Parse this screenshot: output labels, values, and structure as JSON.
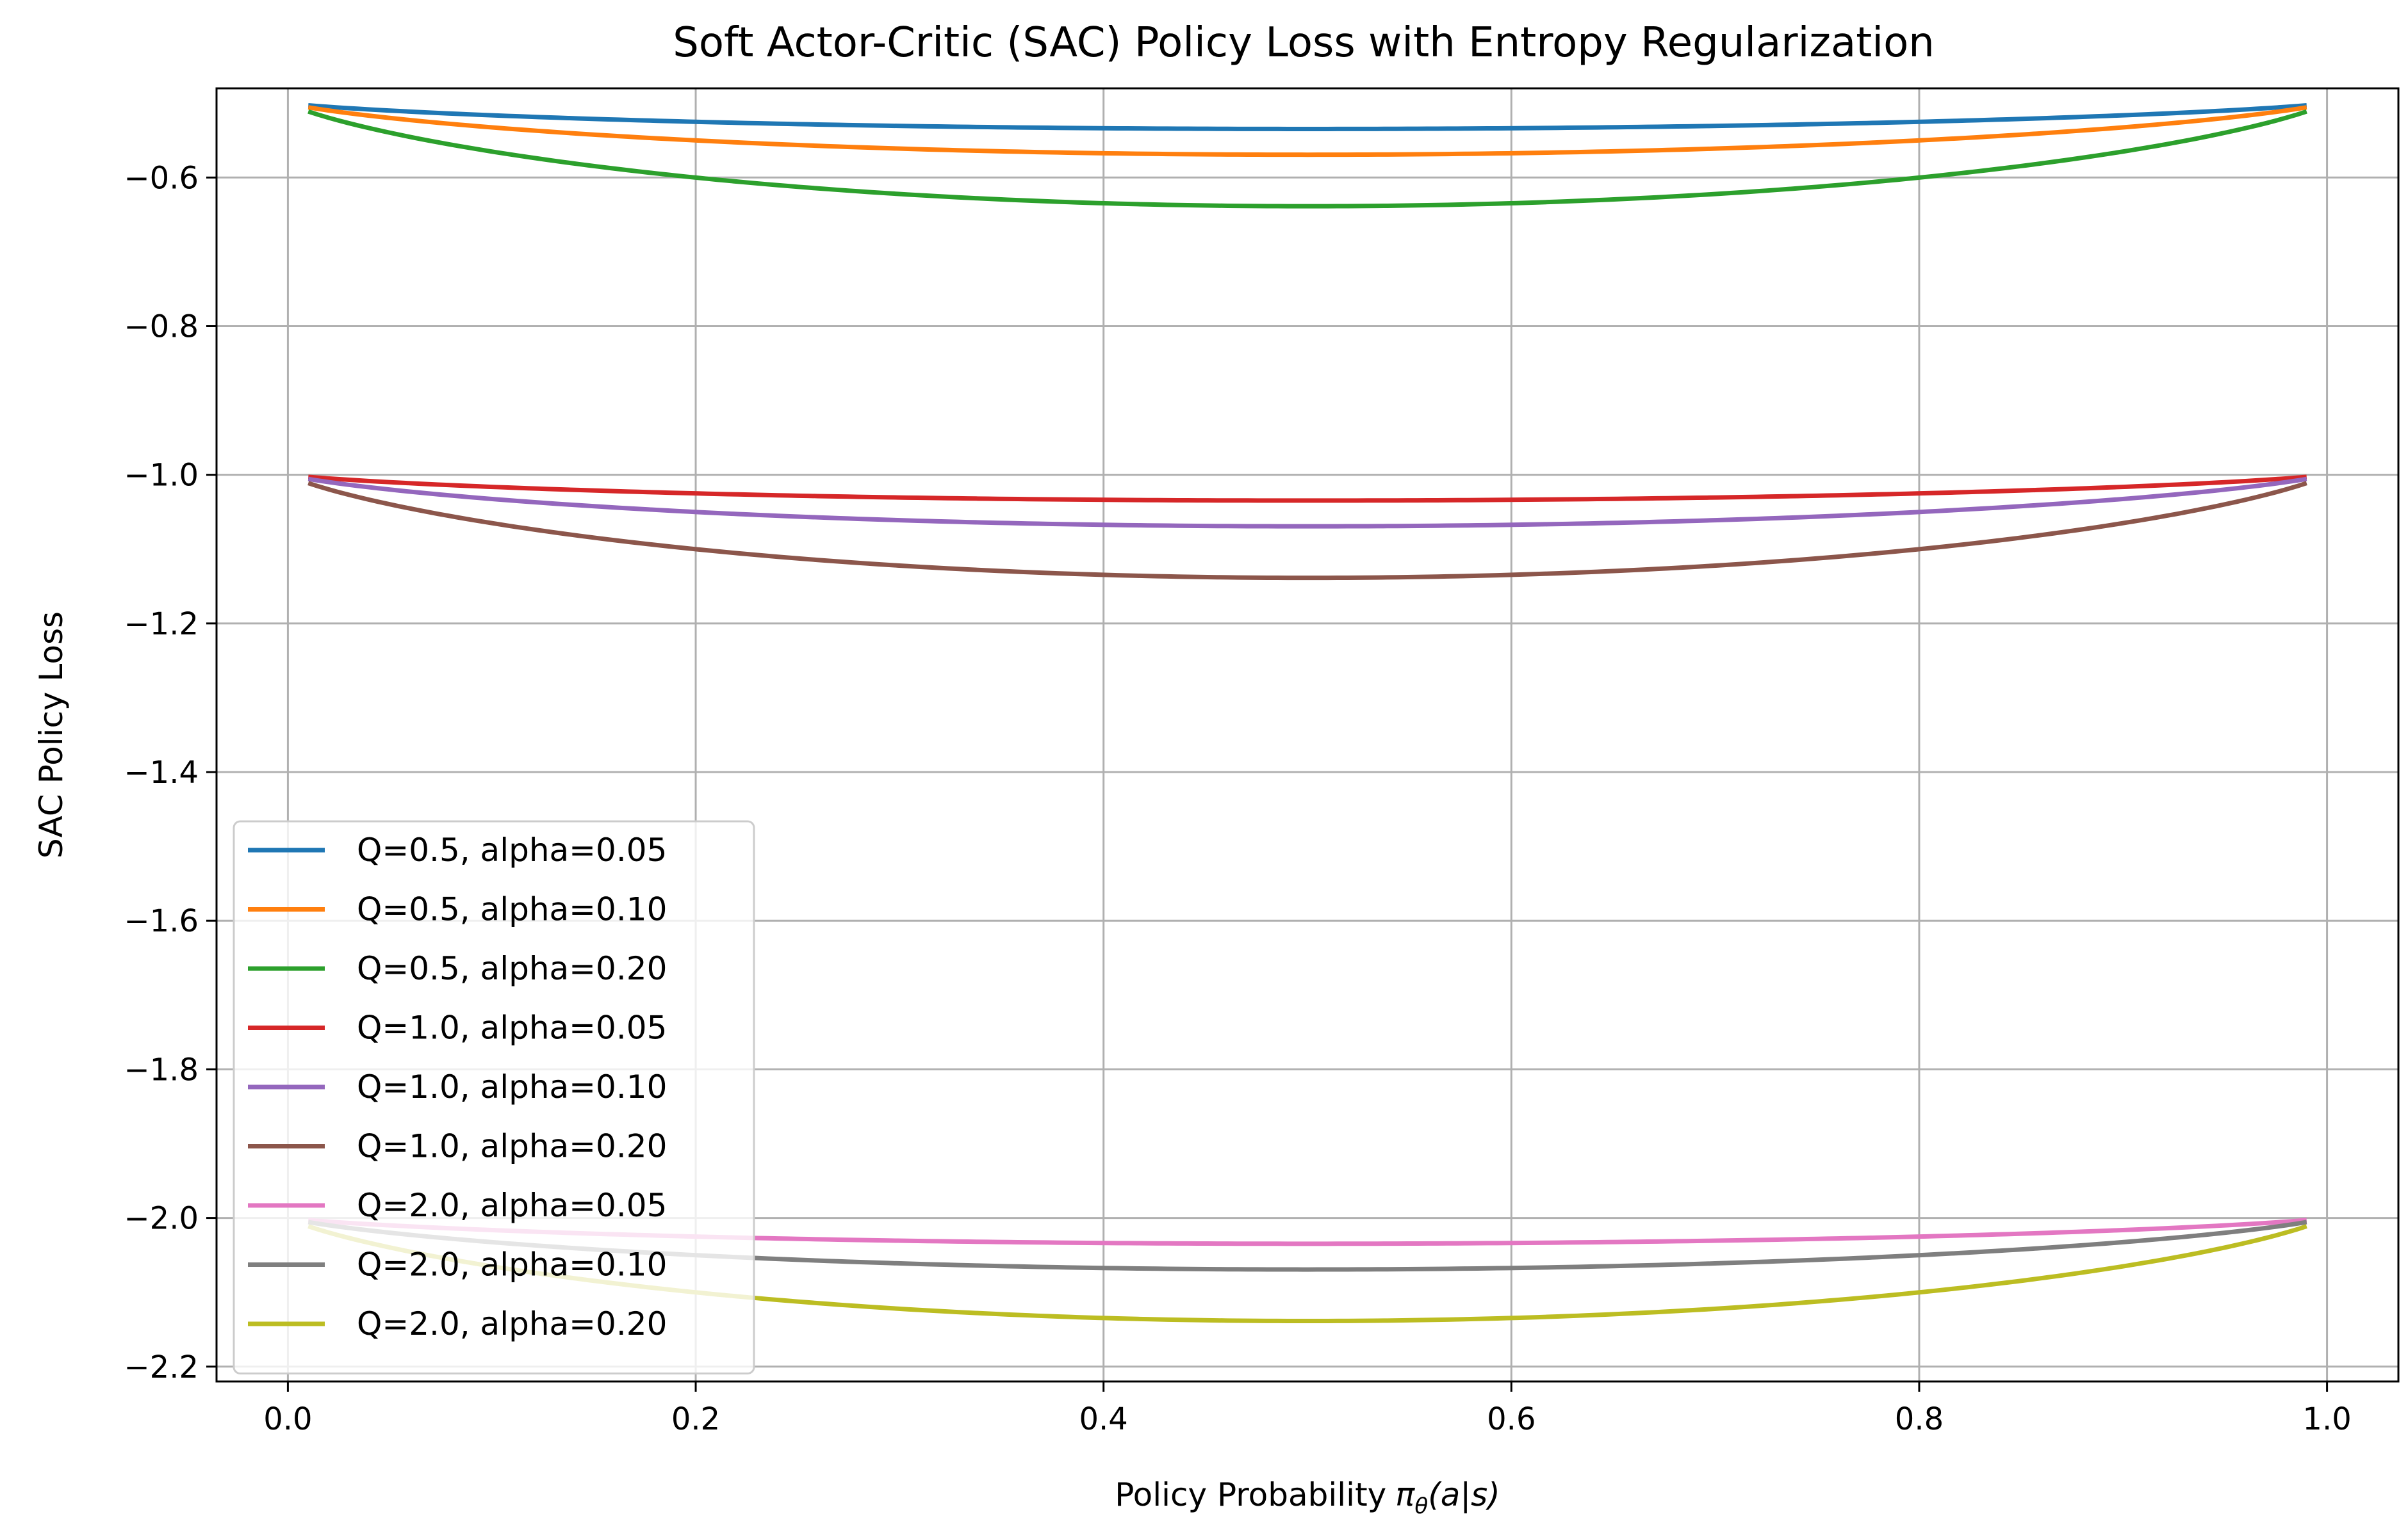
{
  "chart_data": {
    "type": "line",
    "title": "Soft Actor-Critic (SAC) Policy Loss with Entropy Regularization",
    "xlabel": "Policy Probability",
    "xlabel_math": "π",
    "xlabel_sub": "θ",
    "xlabel_tail": "(a|s)",
    "ylabel": "SAC Policy Loss",
    "xlim": [
      -0.035,
      1.035
    ],
    "ylim": [
      -2.22,
      -0.48
    ],
    "x_range": [
      0.01,
      0.99
    ],
    "x_ticks": [
      0.0,
      0.2,
      0.4,
      0.6,
      0.8,
      1.0
    ],
    "x_tick_labels": [
      "0.0",
      "0.2",
      "0.4",
      "0.6",
      "0.8",
      "1.0"
    ],
    "y_ticks": [
      -0.6,
      -0.8,
      -1.0,
      -1.2,
      -1.4,
      -1.6,
      -1.8,
      -2.0,
      -2.2
    ],
    "y_tick_labels": [
      "−0.6",
      "−0.8",
      "−1.0",
      "−1.2",
      "−1.4",
      "−1.6",
      "−1.8",
      "−2.0",
      "−2.2"
    ],
    "grid": true,
    "legend_position": "lower-left",
    "series": [
      {
        "name": "Q=0.5, alpha=0.05",
        "Q": 0.5,
        "alpha": 0.05,
        "color": "#1f77b4"
      },
      {
        "name": "Q=0.5, alpha=0.10",
        "Q": 0.5,
        "alpha": 0.1,
        "color": "#ff7f0e"
      },
      {
        "name": "Q=0.5, alpha=0.20",
        "Q": 0.5,
        "alpha": 0.2,
        "color": "#2ca02c"
      },
      {
        "name": "Q=1.0, alpha=0.05",
        "Q": 1.0,
        "alpha": 0.05,
        "color": "#d62728"
      },
      {
        "name": "Q=1.0, alpha=0.10",
        "Q": 1.0,
        "alpha": 0.1,
        "color": "#9467bd"
      },
      {
        "name": "Q=1.0, alpha=0.20",
        "Q": 1.0,
        "alpha": 0.2,
        "color": "#8c564b"
      },
      {
        "name": "Q=2.0, alpha=0.05",
        "Q": 2.0,
        "alpha": 0.05,
        "color": "#e377c2"
      },
      {
        "name": "Q=2.0, alpha=0.10",
        "Q": 2.0,
        "alpha": 0.1,
        "color": "#7f7f7f"
      },
      {
        "name": "Q=2.0, alpha=0.20",
        "Q": 2.0,
        "alpha": 0.2,
        "color": "#bcbd22"
      }
    ]
  }
}
